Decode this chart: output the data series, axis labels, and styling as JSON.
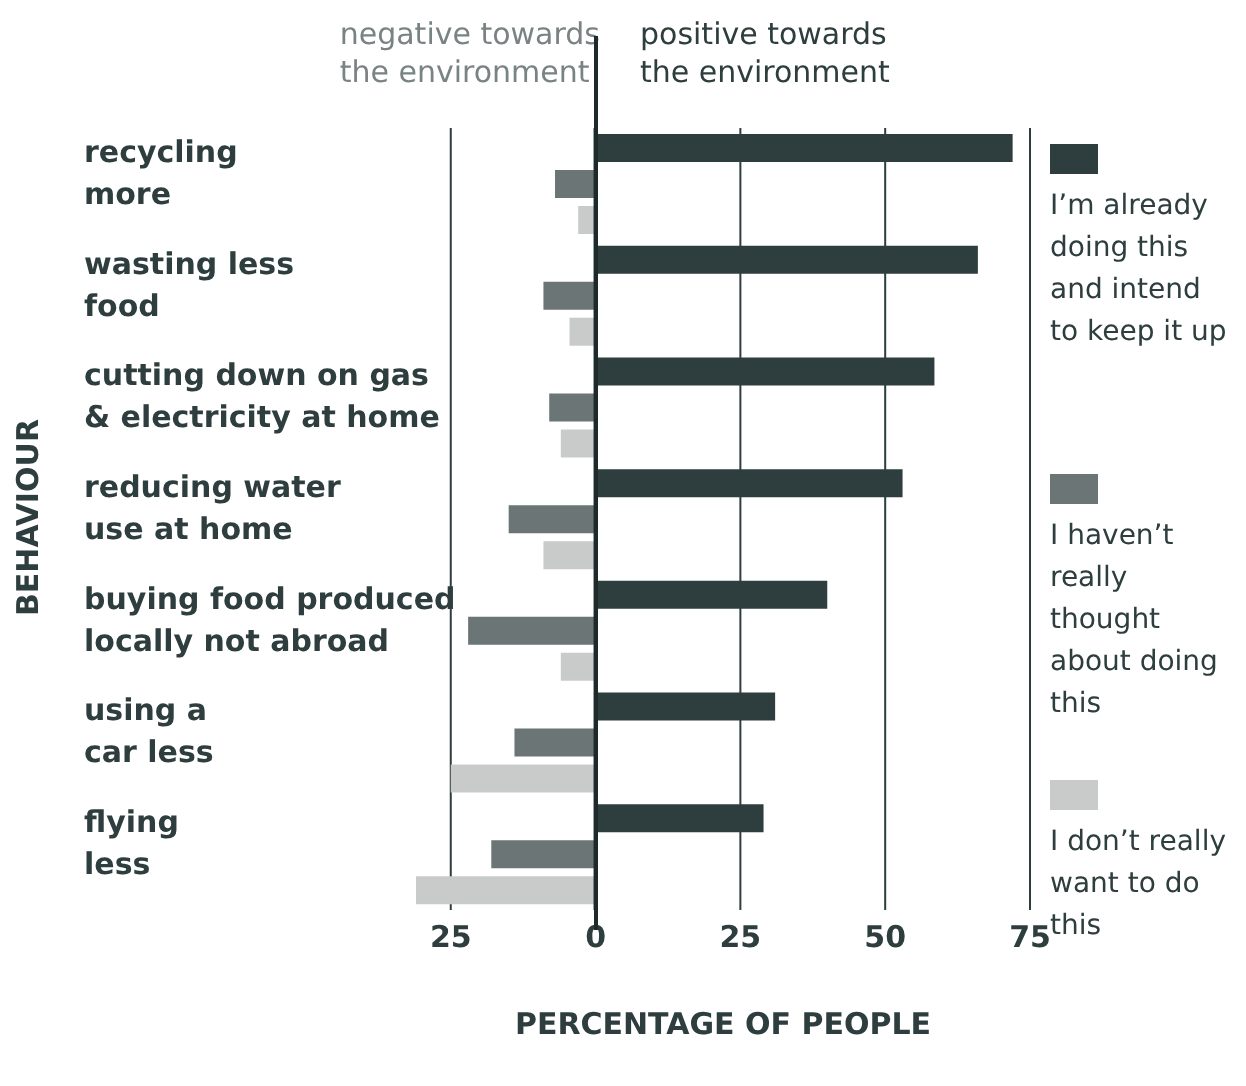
{
  "chart_data": {
    "type": "bar",
    "orientation": "horizontal",
    "ylabel": "BEHAVIOUR",
    "xlabel": "PERCENTAGE OF PEOPLE",
    "annotations": [
      "negative towards\nthe environment",
      "positive towards\nthe environment"
    ],
    "categories": [
      "recycling\nmore",
      "wasting less\nfood",
      "cutting down on gas\n& electricity at home",
      "reducing water\nuse at home",
      "buying food produced\nlocally not abroad",
      "using a\ncar less",
      "flying\nless"
    ],
    "series": [
      {
        "name": "I’m already doing this and intend to keep it up",
        "color": "#2e3d3d",
        "values": [
          72,
          66,
          58.5,
          53,
          40,
          31,
          29
        ]
      },
      {
        "name": "I haven’t really thought about doing this",
        "color": "#6b7575",
        "values": [
          -7,
          -9,
          -8,
          -15,
          -22,
          -14,
          -18
        ]
      },
      {
        "name": "I don’t really want to do this",
        "color": "#c9cbcb",
        "values": [
          -3,
          -4.5,
          -6,
          -9,
          -6,
          -25,
          -31
        ]
      }
    ],
    "xticks": [
      {
        "value": -25,
        "label": "25"
      },
      0,
      25,
      50,
      75
    ],
    "xlim": [
      -31,
      75
    ],
    "ref_lines": [
      {
        "axis": "x",
        "value": 0,
        "color": "#1e2a2a"
      }
    ],
    "grid": "x",
    "legend": "right"
  }
}
